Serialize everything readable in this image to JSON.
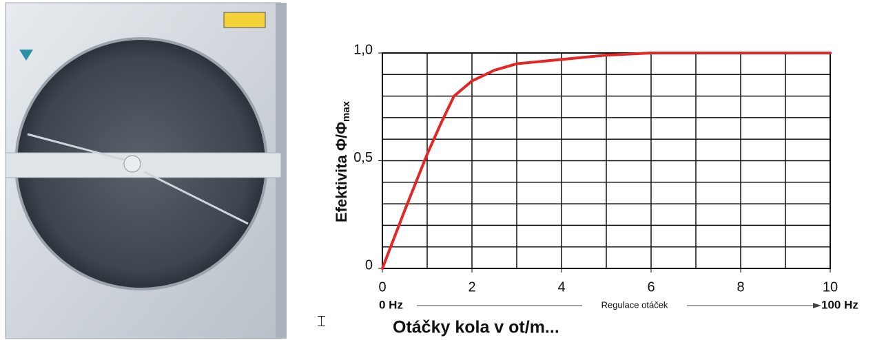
{
  "chart_data": {
    "type": "line",
    "y_label": "Efektivita Φ/Φ",
    "y_label_sub": "max",
    "x_label": "Otáčky kola v ot/m...",
    "x_secondary": {
      "start": "0 Hz",
      "middle": "Regulace otáček",
      "end": "100 Hz"
    },
    "x": [
      0,
      0.5,
      1,
      1.3,
      1.6,
      2,
      2.5,
      3,
      4,
      5,
      6,
      8,
      10
    ],
    "values": [
      0,
      0.27,
      0.53,
      0.67,
      0.8,
      0.87,
      0.92,
      0.95,
      0.97,
      0.99,
      1.0,
      1.0,
      1.0
    ],
    "color": "#e32626",
    "xlim": [
      0,
      10
    ],
    "xticks": [
      0,
      2,
      4,
      6,
      8,
      10
    ],
    "ylim": [
      0,
      1
    ],
    "yticks": [
      0,
      {
        "value": 0.5,
        "label": "0,5"
      },
      {
        "value": 1,
        "label": "1,0"
      }
    ],
    "xgrid": [
      0,
      1,
      2,
      3,
      4,
      5,
      6,
      7,
      8,
      9,
      10
    ],
    "ygrid": [
      0,
      0.1,
      0.2,
      0.3,
      0.4,
      0.5,
      0.6,
      0.7,
      0.8,
      0.9,
      1
    ],
    "grid": true
  }
}
